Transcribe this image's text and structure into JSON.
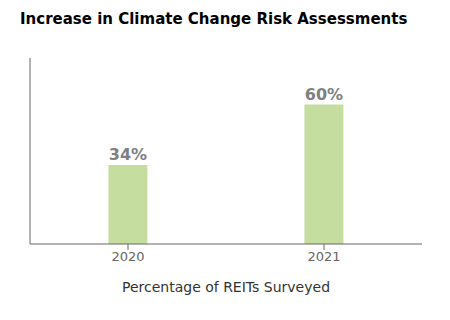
{
  "chart_data": {
    "type": "bar",
    "title": "Increase in Climate Change Risk Assessments",
    "categories": [
      "2020",
      "2021"
    ],
    "values": [
      34,
      60
    ],
    "value_labels": [
      "34%",
      "60%"
    ],
    "data_labels": true,
    "color": "#c5dea0",
    "xlabel": "Percentage of REITs Surveyed",
    "ylim": [
      0,
      80
    ],
    "yticks": [],
    "grid": false,
    "tick_labels": "x"
  }
}
